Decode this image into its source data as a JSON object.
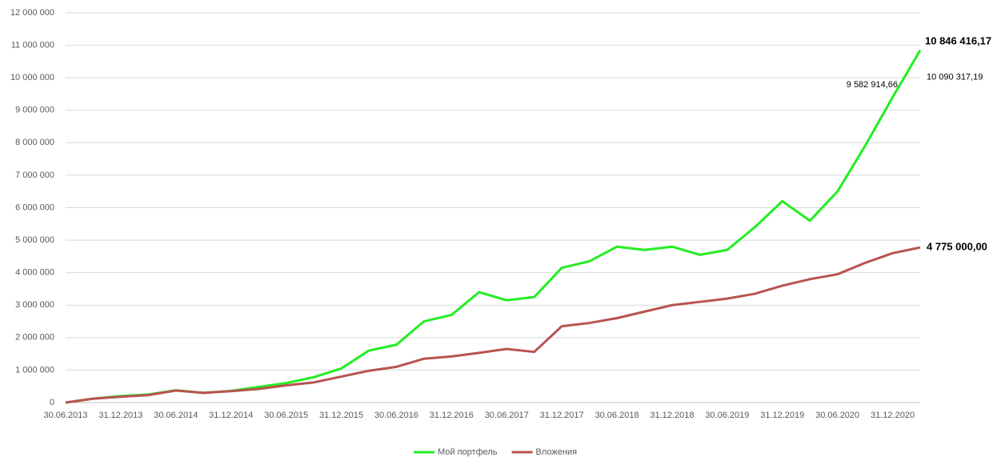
{
  "chart_data": {
    "type": "line",
    "categories": [
      "30.06.2013",
      null,
      "31.12.2013",
      null,
      "30.06.2014",
      null,
      "31.12.2014",
      null,
      "30.06.2015",
      null,
      "31.12.2015",
      null,
      "30.06.2016",
      null,
      "31.12.2016",
      null,
      "30.06.2017",
      null,
      "31.12.2017",
      null,
      "30.06.2018",
      null,
      "31.12.2018",
      null,
      "30.06.2019",
      null,
      "31.12.2019",
      null,
      "30.06.2020",
      null,
      "31.12.2020",
      null
    ],
    "series": [
      {
        "name": "Мой портфель",
        "color": "#22ee22",
        "values": [
          0,
          120000,
          200000,
          250000,
          380000,
          300000,
          360000,
          480000,
          600000,
          780000,
          1050000,
          1600000,
          1780000,
          2500000,
          2700000,
          3400000,
          3150000,
          3250000,
          4150000,
          4350000,
          4800000,
          4700000,
          4800000,
          4550000,
          4700000,
          5400000,
          6200000,
          5600000,
          6500000,
          7900000,
          9400000,
          10846416.17
        ]
      },
      {
        "name": "Вложения",
        "color": "#b85450",
        "values": [
          0,
          120000,
          180000,
          230000,
          370000,
          300000,
          350000,
          420000,
          530000,
          620000,
          800000,
          980000,
          1100000,
          1350000,
          1420000,
          1530000,
          1650000,
          1560000,
          2350000,
          2450000,
          2600000,
          2800000,
          3000000,
          3100000,
          3200000,
          3350000,
          3600000,
          3800000,
          3950000,
          4300000,
          4600000,
          4775000
        ]
      }
    ],
    "ylim": [
      0,
      12000000
    ],
    "yticks": [
      0,
      {
        "value": 1000000,
        "label": "1 000 000"
      },
      {
        "value": 2000000,
        "label": "2 000 000"
      },
      {
        "value": 3000000,
        "label": "3 000 000"
      },
      {
        "value": 4000000,
        "label": "4 000 000"
      },
      {
        "value": 5000000,
        "label": "5 000 000"
      },
      {
        "value": 6000000,
        "label": "6 000 000"
      },
      {
        "value": 7000000,
        "label": "7 000 000"
      },
      {
        "value": 8000000,
        "label": "8 000 000"
      },
      {
        "value": 9000000,
        "label": "9 000 000"
      },
      {
        "value": 10000000,
        "label": "10 000 000"
      },
      {
        "value": 11000000,
        "label": "11 000 000"
      },
      {
        "value": 12000000,
        "label": "12 000 000"
      }
    ],
    "grid": true,
    "legend": "bottom",
    "annotations": [
      {
        "text": "10 846 416,17",
        "value": 10846416.17
      },
      {
        "text": "10 090 317,19",
        "value": 10090317.19
      },
      {
        "text": "9 582 914,66",
        "value": 9582914.66
      },
      {
        "text": "4 775 000,00",
        "value": 4775000
      }
    ]
  }
}
